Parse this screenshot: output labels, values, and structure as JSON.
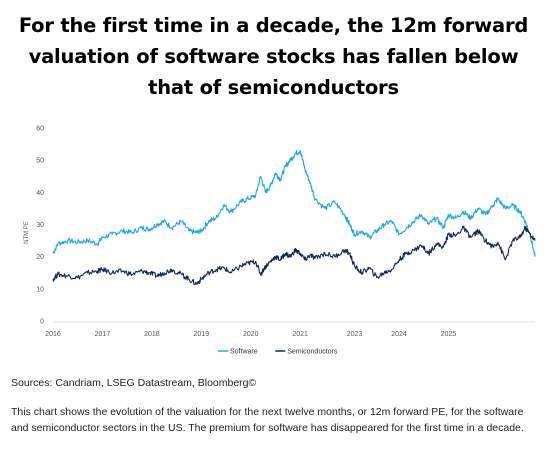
{
  "title": "For the first time in a decade, the 12m forward valuation of software stocks has fallen below that of semiconductors",
  "sources": "Sources: Candriam, LSEG Datastream, Bloomberg©",
  "description": "This chart shows the evolution of the valuation for the next twelve months, or 12m forward PE, for the software and semiconductor sectors in the US. The premium for software has disappeared for the first time in a decade.",
  "chart_data": {
    "type": "line",
    "title": "",
    "xlabel": "",
    "ylabel": "NTM PE",
    "ylim": [
      0,
      60
    ],
    "yticks": [
      "0",
      "10",
      "20",
      "30",
      "40",
      "50",
      "60"
    ],
    "xlim": [
      2016.0,
      2025.75
    ],
    "xticks": [
      "2016",
      "2017",
      "2018",
      "2019",
      "2020",
      "2021",
      "2023",
      "2024",
      "2025"
    ],
    "xtick_positions": [
      2016,
      2017,
      2018,
      2019,
      2020,
      2021,
      2022.1,
      2023.0,
      2024.0
    ],
    "grid": false,
    "legend_position": "bottom-center",
    "series": [
      {
        "name": "Software",
        "color": "#1aa7e0",
        "x": [
          2016.0,
          2016.1,
          2016.3,
          2016.5,
          2016.7,
          2016.9,
          2017.0,
          2017.2,
          2017.4,
          2017.6,
          2017.8,
          2017.95,
          2018.1,
          2018.25,
          2018.4,
          2018.6,
          2018.75,
          2018.9,
          2019.0,
          2019.15,
          2019.3,
          2019.45,
          2019.6,
          2019.8,
          2019.95,
          2020.1,
          2020.2,
          2020.3,
          2020.4,
          2020.5,
          2020.6,
          2020.7,
          2020.8,
          2020.9,
          2021.0,
          2021.1,
          2021.2,
          2021.3,
          2021.5,
          2021.7,
          2021.9,
          2022.0,
          2022.1,
          2022.25,
          2022.4,
          2022.55,
          2022.7,
          2022.85,
          2023.0,
          2023.15,
          2023.3,
          2023.45,
          2023.6,
          2023.75,
          2023.9,
          2024.0,
          2024.15,
          2024.3,
          2024.45,
          2024.6,
          2024.75,
          2024.9,
          2025.0,
          2025.15,
          2025.3,
          2025.45,
          2025.55,
          2025.65,
          2025.75
        ],
        "values": [
          21,
          24,
          25,
          24.5,
          25,
          24,
          26,
          27,
          28,
          27.5,
          29,
          28.5,
          30,
          31,
          29,
          31,
          28,
          27.5,
          28,
          31,
          32,
          36,
          34,
          37,
          38,
          39,
          45,
          40,
          42,
          46,
          44,
          48,
          50,
          52,
          53,
          47,
          43,
          38,
          35,
          37,
          33,
          30,
          27,
          28,
          26,
          28,
          30,
          31,
          27,
          29,
          31,
          33,
          30,
          32,
          29,
          33,
          32,
          34,
          32,
          35,
          33,
          36,
          38,
          35,
          36,
          34,
          31,
          27,
          20
        ]
      },
      {
        "name": "Semiconductors",
        "color": "#12285f",
        "x": [
          2016.0,
          2016.1,
          2016.3,
          2016.5,
          2016.7,
          2016.9,
          2017.0,
          2017.2,
          2017.4,
          2017.6,
          2017.8,
          2017.95,
          2018.1,
          2018.25,
          2018.4,
          2018.6,
          2018.75,
          2018.9,
          2019.0,
          2019.15,
          2019.3,
          2019.45,
          2019.6,
          2019.8,
          2019.95,
          2020.1,
          2020.2,
          2020.3,
          2020.4,
          2020.5,
          2020.6,
          2020.7,
          2020.8,
          2020.9,
          2021.0,
          2021.1,
          2021.2,
          2021.3,
          2021.5,
          2021.7,
          2021.9,
          2022.0,
          2022.1,
          2022.25,
          2022.4,
          2022.55,
          2022.7,
          2022.85,
          2023.0,
          2023.15,
          2023.3,
          2023.45,
          2023.6,
          2023.75,
          2023.9,
          2024.0,
          2024.15,
          2024.3,
          2024.45,
          2024.6,
          2024.75,
          2024.9,
          2025.0,
          2025.15,
          2025.3,
          2025.45,
          2025.55,
          2025.65,
          2025.75
        ],
        "values": [
          13,
          14.5,
          14,
          13.5,
          15,
          15.5,
          16,
          15,
          15.5,
          14.5,
          15.5,
          15,
          14,
          15,
          16,
          14.5,
          13,
          11.5,
          13,
          15,
          16,
          16.5,
          15,
          17,
          18,
          18.5,
          14.5,
          17,
          18.5,
          20,
          19,
          21,
          20,
          22,
          21,
          19,
          20.5,
          19.5,
          21,
          20,
          22,
          21,
          17,
          15,
          16.5,
          13.5,
          15,
          16,
          19,
          21,
          22,
          23.5,
          21,
          24,
          23,
          27,
          26.5,
          29,
          26,
          28,
          25,
          23,
          24.5,
          19,
          25,
          26,
          29,
          27,
          25
        ]
      }
    ]
  }
}
